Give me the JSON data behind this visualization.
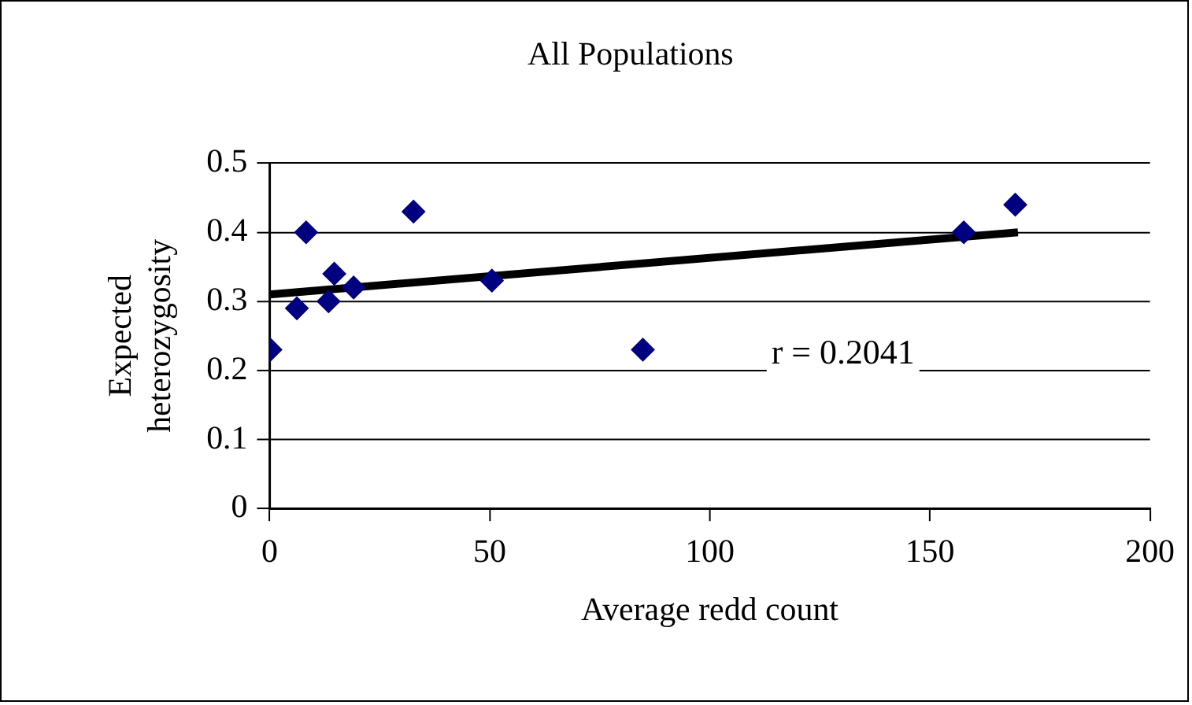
{
  "chart_data": {
    "type": "scatter",
    "title": "All Populations",
    "xlabel": "Average redd count",
    "ylabel": "Expected heterozygosity",
    "series": [
      {
        "color": "#000080",
        "marker": "diamond",
        "x": [
          0.2,
          6.2,
          8.3,
          13.4,
          14.7,
          19.1,
          32.7,
          50.5,
          84.8,
          157.7,
          169.4
        ],
        "values": [
          0.23,
          0.29,
          0.4,
          0.3,
          0.34,
          0.32,
          0.43,
          0.33,
          0.23,
          0.4,
          0.44
        ]
      },
      {
        "type": "line",
        "color": "#000000",
        "x": [
          0,
          170
        ],
        "values": [
          0.31,
          0.4
        ]
      }
    ],
    "xlim": [
      0,
      200
    ],
    "xticks": [
      0,
      50,
      100,
      150,
      200
    ],
    "ylim": [
      0,
      0.5
    ],
    "yticks": [
      0,
      0.1,
      0.2,
      0.3,
      0.4,
      0.5
    ],
    "grid": "y",
    "legend": false,
    "annotations": [
      "r = 0.2041"
    ]
  }
}
